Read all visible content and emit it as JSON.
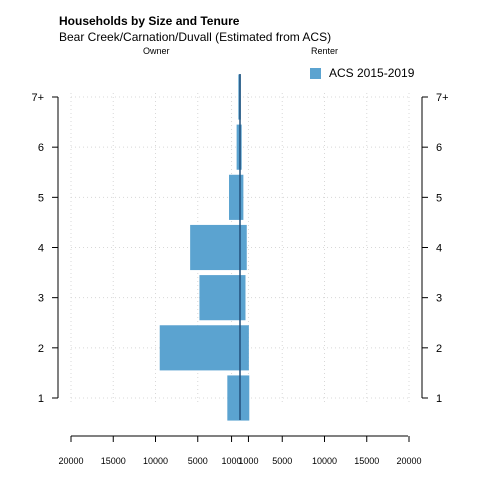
{
  "chart_data": {
    "type": "bar",
    "orientation": "horizontal-population-pyramid",
    "title": "Households by Size and Tenure",
    "subtitle": "Bear Creek/Carnation/Duvall (Estimated from ACS)",
    "left_label": "Owner",
    "right_label": "Renter",
    "categories": [
      "1",
      "2",
      "3",
      "4",
      "5",
      "6",
      "7+"
    ],
    "series": [
      {
        "name": "ACS 2015-2019",
        "color": "#5ba3d0",
        "owner": [
          1500,
          9500,
          4800,
          5900,
          1300,
          400,
          200
        ],
        "renter": [
          1100,
          1050,
          650,
          800,
          400,
          200,
          100
        ]
      }
    ],
    "xlim": [
      -20000,
      20000
    ],
    "x_ticks": [
      -20000,
      -15000,
      -10000,
      -5000,
      -1000,
      1000,
      5000,
      10000,
      15000,
      20000
    ],
    "x_tick_labels": [
      "20000",
      "15000",
      "10000",
      "5000",
      "1000",
      "1000",
      "5000",
      "10000",
      "15000",
      "20000"
    ],
    "grid": true,
    "legend_position": "top-right"
  }
}
